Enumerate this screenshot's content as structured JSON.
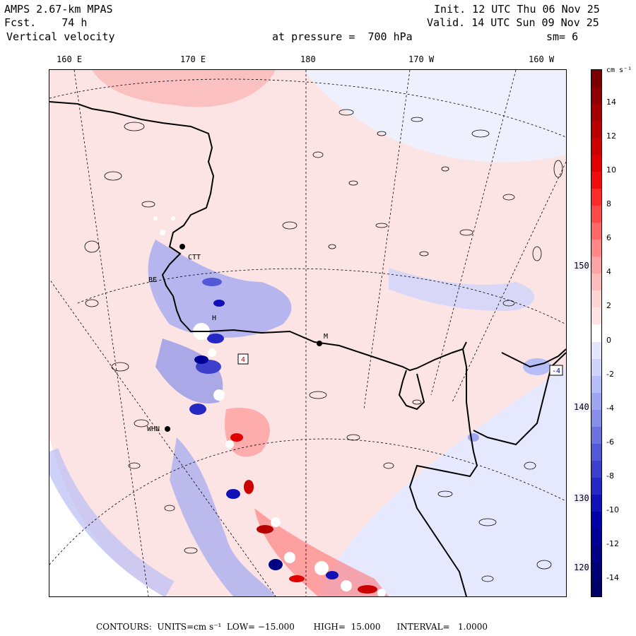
{
  "header": {
    "model": "AMPS 2.67-km MPAS",
    "forecast": "Fcst.    74 h",
    "field": "Vertical velocity",
    "pressure_label": "at pressure =  700 hPa",
    "init": "Init. 12 UTC Thu 06 Nov 25",
    "valid": "Valid. 14 UTC Sun 09 Nov 25",
    "smoothing": "sm= 6"
  },
  "axes": {
    "top_ticks": [
      "160 E",
      "170 E",
      "180",
      "170 W",
      "160 W"
    ],
    "right_ticks": [
      "150 W",
      "140 W",
      "130 W",
      "120 W"
    ]
  },
  "stations": [
    "M",
    "H",
    "CTT",
    "BE",
    "WHN"
  ],
  "map_labels": [
    "4",
    "-4"
  ],
  "colorbar": {
    "units": "cm s⁻¹",
    "labels": [
      "14",
      "12",
      "10",
      "8",
      "6",
      "4",
      "2",
      "0",
      "-2",
      "-4",
      "-6",
      "-8",
      "-10",
      "-12",
      "-14"
    ],
    "colors": [
      "#7a0000",
      "#8e0000",
      "#a30000",
      "#b80000",
      "#cd0000",
      "#e00000",
      "#f20d0d",
      "#ff2b2b",
      "#ff4a4a",
      "#ff6868",
      "#ff8787",
      "#f9a3a3",
      "#fbbcbc",
      "#fdd4d4",
      "#fde3e3",
      "#ffffff",
      "#e4e6fd",
      "#cfd3fb",
      "#b7bdf7",
      "#9fa6f0",
      "#878ee8",
      "#6c73de",
      "#5359d6",
      "#3c40cd",
      "#2528c4",
      "#1012b8",
      "#0000a8",
      "#000096",
      "#000085",
      "#000075",
      "#000066"
    ]
  },
  "footer": {
    "text": "CONTOURS:  UNITS=cm s⁻¹  LOW= −15.000       HIGH=  15.000      INTERVAL=   1.0000"
  }
}
